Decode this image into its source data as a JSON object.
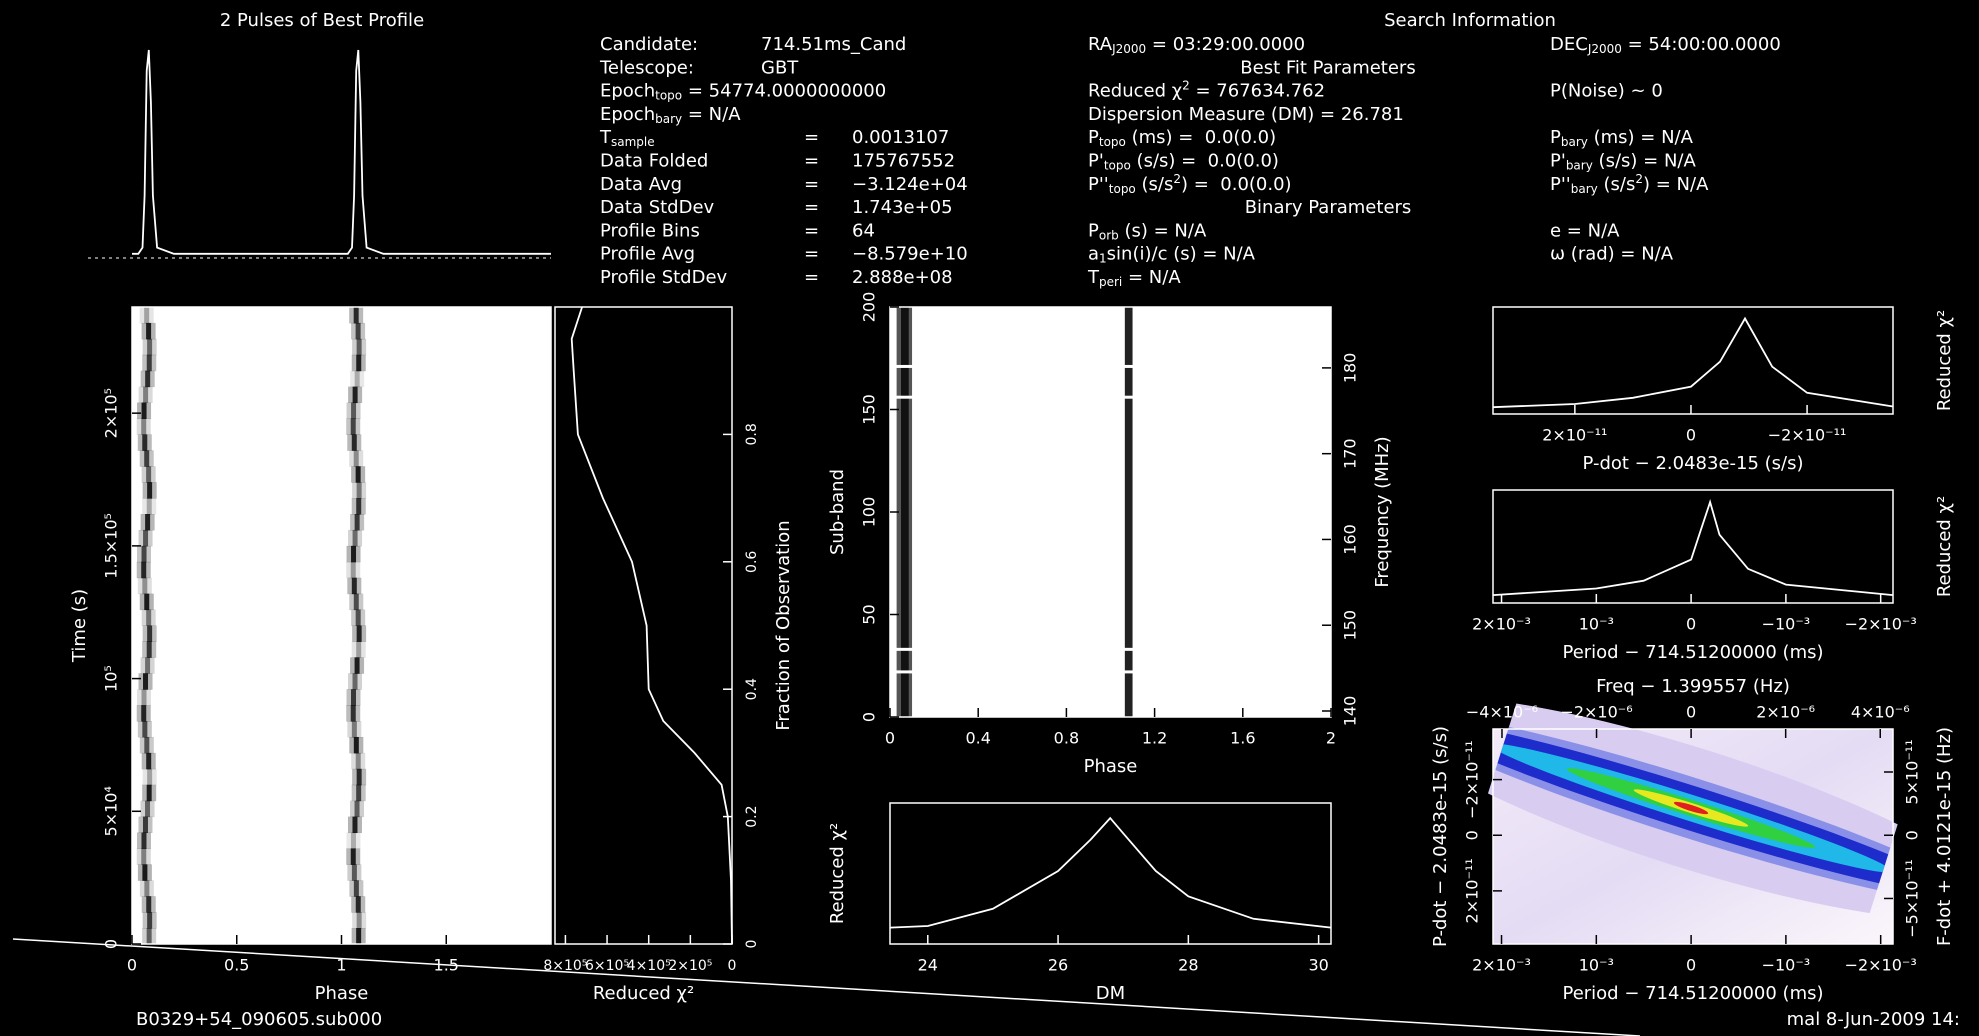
{
  "chart_data": [
    {
      "type": "line",
      "title": "2 Pulses of Best Profile",
      "x": [
        0,
        0.03,
        0.05,
        0.06,
        0.07,
        0.08,
        0.09,
        0.1,
        0.12,
        0.2,
        0.4,
        0.6,
        0.8,
        1,
        1.03,
        1.05,
        1.06,
        1.07,
        1.08,
        1.09,
        1.1,
        1.12,
        1.2,
        1.4,
        1.6,
        1.8,
        2
      ],
      "values": [
        0.02,
        0.02,
        0.05,
        0.3,
        0.9,
        1.0,
        0.75,
        0.3,
        0.05,
        0.02,
        0.02,
        0.02,
        0.02,
        0.02,
        0.02,
        0.05,
        0.3,
        0.9,
        1.0,
        0.75,
        0.3,
        0.05,
        0.02,
        0.02,
        0.02,
        0.02,
        0.02
      ],
      "xlim": [
        0,
        2
      ],
      "ylim": [
        0,
        1
      ]
    },
    {
      "type": "image",
      "xlabel": "Phase",
      "ylabel": "Time (s)",
      "xlim": [
        0,
        2
      ],
      "xticks": [
        0,
        0.5,
        1,
        1.5
      ],
      "ylim": [
        0,
        240000
      ],
      "yticks": [
        0,
        {
          "value": 50000,
          "label": "5×10⁴"
        },
        {
          "value": 100000,
          "label": "10⁵"
        },
        {
          "value": 150000,
          "label": "1.5×10⁵"
        },
        {
          "value": 200000,
          "label": "2×10⁵"
        }
      ]
    },
    {
      "type": "line",
      "xlabel": "Reduced χ²",
      "y2label": "Fraction of Observation",
      "axis": "y2",
      "x": [
        0,
        5000,
        20000,
        50000,
        180000,
        330000,
        400000,
        410000,
        480000,
        620000,
        740000,
        760000,
        770000,
        720000
      ],
      "values": [
        0,
        0.1,
        0.2,
        0.25,
        0.3,
        0.35,
        0.4,
        0.5,
        0.6,
        0.7,
        0.8,
        0.9,
        0.95,
        1
      ],
      "xlim": [
        850000,
        0
      ],
      "xticks": [
        {
          "value": 800000,
          "label": "8×10⁵"
        },
        {
          "value": 600000,
          "label": "6×10⁵"
        },
        {
          "value": 400000,
          "label": "4×10⁵"
        },
        {
          "value": 200000,
          "label": "2×10⁵"
        },
        0
      ],
      "y2lim": [
        0,
        1
      ],
      "y2ticks": [
        0,
        0.2,
        0.4,
        0.6,
        0.8
      ]
    },
    {
      "type": "image",
      "xlabel": "Phase",
      "ylabel": "Sub-band",
      "y2label": "Frequency (MHz)",
      "xlim": [
        0,
        2
      ],
      "xticks": [
        0,
        0.4,
        0.8,
        1.2,
        1.6,
        2
      ],
      "ylim": [
        0,
        200
      ],
      "yticks": [
        0,
        50,
        100,
        150,
        200
      ],
      "y2lim": [
        139.3,
        187.1
      ],
      "y2ticks": [
        140,
        150,
        160,
        170,
        180
      ]
    },
    {
      "type": "line",
      "xlabel": "DM",
      "ylabel": "Reduced χ²",
      "x": [
        23.42,
        24,
        25,
        26,
        26.5,
        26.8,
        27,
        27.5,
        28,
        29,
        30.19
      ],
      "values": [
        100000,
        110000,
        215000,
        445000,
        637000,
        767634,
        675000,
        445000,
        291000,
        154000,
        100000
      ],
      "xlim": [
        23.42,
        30.19
      ],
      "xticks": [
        24,
        26,
        28,
        30
      ],
      "ylim": [
        0,
        860000
      ]
    },
    {
      "type": "line",
      "xlabel": "P-dot − 2.0483e-15 (s/s)",
      "y2label": "Reduced χ²",
      "axis": "y2",
      "x": [
        3.41e-11,
        2e-11,
        1e-11,
        0,
        -5e-12,
        -9.3e-12,
        -1.4e-11,
        -2e-11,
        -3.48e-11
      ],
      "values": [
        55000,
        80000,
        130000,
        220000,
        420000,
        767634,
        380000,
        170000,
        60000
      ],
      "xlim": [
        3.41e-11,
        -3.48e-11
      ],
      "xticks": [
        {
          "value": 2e-11,
          "label": "2×10⁻¹¹"
        },
        0,
        {
          "value": -2e-11,
          "label": "−2×10⁻¹¹"
        }
      ],
      "y2lim": [
        0,
        860000
      ]
    },
    {
      "type": "line",
      "xlabel": "Period − 714.51200000 (ms)",
      "y2label": "Reduced χ²",
      "axis": "y2",
      "x": [
        0.00209,
        0.001,
        0.0005,
        0,
        -0.0001,
        -0.0002,
        -0.0003,
        -0.0006,
        -0.001,
        -0.00213
      ],
      "values": [
        60000,
        110000,
        170000,
        330000,
        550000,
        767634,
        520000,
        260000,
        140000,
        60000
      ],
      "xlim": [
        0.00209,
        -0.00213
      ],
      "xticks": [
        {
          "value": 0.002,
          "label": "2×10⁻³"
        },
        {
          "value": 0.001,
          "label": "10⁻³"
        },
        0,
        {
          "value": -0.001,
          "label": "−10⁻³"
        },
        {
          "value": -0.002,
          "label": "−2×10⁻³"
        }
      ],
      "y2lim": [
        0,
        860000
      ]
    },
    {
      "type": "image",
      "xlabel": "Period − 714.51200000 (ms)",
      "x2label": "Freq − 1.399557 (Hz)",
      "ylabel": "P-dot − 2.0483e-15 (s/s)",
      "y2label": "F-dot + 4.0121e-15 (Hz)",
      "xlim": [
        0.00209,
        -0.00213
      ],
      "xticks": [
        {
          "value": 0.002,
          "label": "2×10⁻³"
        },
        {
          "value": 0.001,
          "label": "10⁻³"
        },
        0,
        {
          "value": -0.001,
          "label": "−10⁻³"
        },
        {
          "value": -0.002,
          "label": "−2×10⁻³"
        }
      ],
      "x2lim": [
        -4.19e-06,
        4.27e-06
      ],
      "x2ticks": [
        {
          "value": -4e-06,
          "label": "−4×10⁻⁶"
        },
        {
          "value": -2e-06,
          "label": "−2×10⁻⁶"
        },
        0,
        {
          "value": 2e-06,
          "label": "2×10⁻⁶"
        },
        {
          "value": 4e-06,
          "label": "4×10⁻⁶"
        }
      ],
      "ylim": [
        3.91e-11,
        -3.82e-11
      ],
      "yticks": [
        {
          "value": 2e-11,
          "label": "2×10⁻¹¹"
        },
        0,
        {
          "value": -2e-11,
          "label": "−2×10⁻¹¹"
        }
      ],
      "y2lim": [
        -8.6e-11,
        8.4e-11
      ],
      "y2ticks": [
        {
          "value": -5e-11,
          "label": "−5×10⁻¹¹"
        },
        0,
        {
          "value": 5e-11,
          "label": "5×10⁻¹¹"
        }
      ]
    }
  ],
  "info": {
    "rows": [
      [
        [
          {
            "t": "Candidate:"
          }
        ],
        "714.51ms_Cand"
      ],
      [
        [
          {
            "t": "Telescope:"
          }
        ],
        "GBT"
      ],
      [
        [
          {
            "t": "Epoch"
          },
          {
            "sub": "topo"
          },
          {
            "t": " = 54774.0000000000"
          }
        ]
      ],
      [
        [
          {
            "t": "Epoch"
          },
          {
            "sub": "bary"
          },
          {
            "t": " = N/A"
          }
        ]
      ],
      [
        [
          {
            "t": "T"
          },
          {
            "sub": "sample"
          }
        ],
        "=",
        "0.0013107"
      ],
      [
        [
          {
            "t": "Data Folded"
          }
        ],
        "=",
        "175767552"
      ],
      [
        [
          {
            "t": "Data Avg"
          }
        ],
        "=",
        "−3.124e+04"
      ],
      [
        [
          {
            "t": "Data StdDev"
          }
        ],
        "=",
        "1.743e+05"
      ],
      [
        [
          {
            "t": "Profile Bins"
          }
        ],
        "=",
        "64"
      ],
      [
        [
          {
            "t": "Profile Avg"
          }
        ],
        "=",
        "−8.579e+10"
      ],
      [
        [
          {
            "t": "Profile StdDev"
          }
        ],
        "=",
        "2.888e+08"
      ]
    ]
  },
  "search": {
    "title": "Search Information",
    "rows": [
      {
        "left": [
          {
            "t": "RA"
          },
          {
            "sub": "J2000"
          },
          {
            "t": " = 03:29:00.0000"
          }
        ],
        "right": [
          {
            "t": "DEC"
          },
          {
            "sub": "J2000"
          },
          {
            "t": " = 54:00:00.0000"
          }
        ]
      },
      {
        "heading": "Best Fit Parameters"
      },
      {
        "left": [
          {
            "t": "Reduced χ"
          },
          {
            "sup": "2"
          },
          {
            "t": " = 767634.762"
          }
        ],
        "right": [
          {
            "t": "P(Noise) ~ 0"
          }
        ]
      },
      {
        "left": [
          {
            "t": "Dispersion Measure (DM) = 26.781"
          }
        ]
      },
      {
        "left": [
          {
            "t": "P"
          },
          {
            "sub": "topo"
          },
          {
            "t": " (ms) =  0.0(0.0)"
          }
        ],
        "right": [
          {
            "t": "P"
          },
          {
            "sub": "bary"
          },
          {
            "t": " (ms) = N/A"
          }
        ]
      },
      {
        "left": [
          {
            "t": "P'"
          },
          {
            "sub": "topo"
          },
          {
            "t": " (s/s) =  0.0(0.0)"
          }
        ],
        "right": [
          {
            "t": "P'"
          },
          {
            "sub": "bary"
          },
          {
            "t": " (s/s) = N/A"
          }
        ]
      },
      {
        "left": [
          {
            "t": "P''"
          },
          {
            "sub": "topo"
          },
          {
            "t": " (s/s"
          },
          {
            "sup": "2"
          },
          {
            "t": ") =  0.0(0.0)"
          }
        ],
        "right": [
          {
            "t": "P''"
          },
          {
            "sub": "bary"
          },
          {
            "t": " (s/s"
          },
          {
            "sup": "2"
          },
          {
            "t": ") = N/A"
          }
        ]
      },
      {
        "heading": "Binary Parameters"
      },
      {
        "left": [
          {
            "t": "P"
          },
          {
            "sub": "orb"
          },
          {
            "t": " (s) = N/A"
          }
        ],
        "right": [
          {
            "t": "e = N/A"
          }
        ]
      },
      {
        "left": [
          {
            "t": "a"
          },
          {
            "sub": "1"
          },
          {
            "t": "sin(i)/c (s) = N/A"
          }
        ],
        "right": [
          {
            "t": "ω (rad) = N/A"
          }
        ]
      },
      {
        "left": [
          {
            "t": "T"
          },
          {
            "sub": "peri"
          },
          {
            "t": " = N/A"
          }
        ]
      }
    ]
  },
  "footer": {
    "left": "B0329+54_090605.sub000",
    "right": "mal 8-Jun-2009 14:"
  }
}
